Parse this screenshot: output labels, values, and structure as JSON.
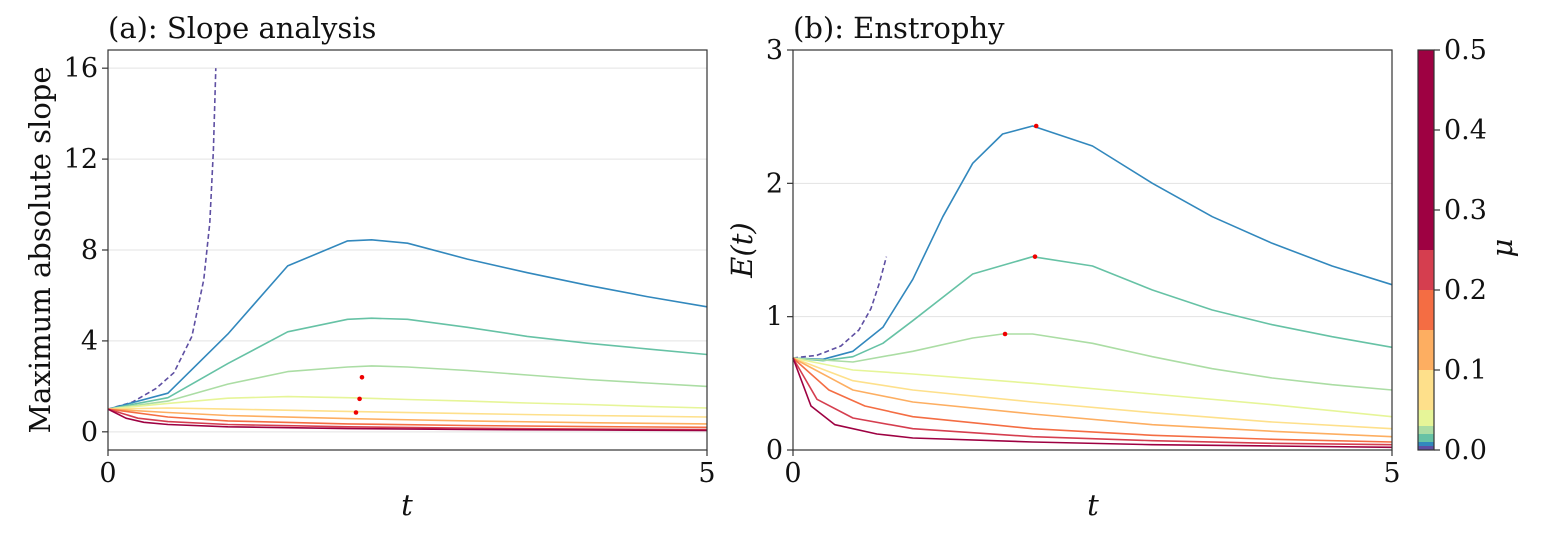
{
  "chart_data": [
    {
      "type": "line",
      "title": "(a): Slope analysis",
      "xlabel": "t",
      "ylabel": "Maximum absolute slope",
      "xlim": [
        0,
        5
      ],
      "ylim": [
        -0.8,
        16.8
      ],
      "xticks": [
        "0",
        "5"
      ],
      "yticks": [
        "0",
        "4",
        "8",
        "12",
        "16"
      ],
      "yticks_values": [
        0,
        4,
        8,
        12,
        16
      ],
      "xticks_values": [
        0,
        5
      ],
      "grid": "horizontal",
      "series": [
        {
          "color": "#5e4fa2",
          "style": "dashed",
          "x": [
            0,
            0.2,
            0.4,
            0.55,
            0.7,
            0.8,
            0.85,
            0.88,
            0.9
          ],
          "y": [
            1.0,
            1.3,
            1.9,
            2.6,
            4.2,
            6.7,
            9.2,
            12.4,
            16.0
          ]
        },
        {
          "color": "#3288bd",
          "x": [
            0,
            0.5,
            1.0,
            1.5,
            2.0,
            2.2,
            2.5,
            3.0,
            3.5,
            4.0,
            4.5,
            5.0
          ],
          "y": [
            1.0,
            1.7,
            4.3,
            7.3,
            8.4,
            8.45,
            8.3,
            7.6,
            7.0,
            6.45,
            5.95,
            5.5
          ]
        },
        {
          "color": "#66c2a5",
          "x": [
            0,
            0.5,
            1.0,
            1.5,
            2.0,
            2.2,
            2.5,
            3.0,
            3.5,
            4.0,
            4.5,
            5.0
          ],
          "y": [
            1.0,
            1.5,
            3.0,
            4.4,
            4.95,
            5.0,
            4.95,
            4.6,
            4.2,
            3.9,
            3.65,
            3.4
          ]
        },
        {
          "color": "#abdda4",
          "x": [
            0,
            0.5,
            1.0,
            1.5,
            2.0,
            2.2,
            2.5,
            3.0,
            3.5,
            4.0,
            4.5,
            5.0
          ],
          "y": [
            1.0,
            1.35,
            2.1,
            2.65,
            2.85,
            2.9,
            2.85,
            2.7,
            2.5,
            2.3,
            2.15,
            2.0
          ]
        },
        {
          "color": "#e6f598",
          "x": [
            0,
            0.5,
            1.0,
            1.5,
            2.0,
            2.5,
            3.0,
            3.5,
            4.0,
            4.5,
            5.0
          ],
          "y": [
            1.0,
            1.25,
            1.48,
            1.55,
            1.5,
            1.42,
            1.35,
            1.27,
            1.2,
            1.12,
            1.05
          ]
        },
        {
          "color": "#fee08b",
          "x": [
            0,
            0.5,
            1.0,
            2.0,
            3.0,
            4.0,
            5.0
          ],
          "y": [
            1.0,
            1.05,
            1.0,
            0.9,
            0.8,
            0.72,
            0.65
          ]
        },
        {
          "color": "#fdae61",
          "x": [
            0,
            0.5,
            1.0,
            2.0,
            3.0,
            4.0,
            5.0
          ],
          "y": [
            1.0,
            0.85,
            0.72,
            0.58,
            0.48,
            0.4,
            0.35
          ]
        },
        {
          "color": "#f46d43",
          "x": [
            0,
            0.5,
            1.0,
            2.0,
            3.0,
            4.0,
            5.0
          ],
          "y": [
            1.0,
            0.65,
            0.48,
            0.35,
            0.28,
            0.23,
            0.2
          ]
        },
        {
          "color": "#d53e4f",
          "x": [
            0,
            0.25,
            0.5,
            1.0,
            2.0,
            3.0,
            4.0,
            5.0
          ],
          "y": [
            1.0,
            0.6,
            0.45,
            0.32,
            0.22,
            0.16,
            0.12,
            0.1
          ]
        },
        {
          "color": "#9e0142",
          "x": [
            0,
            0.15,
            0.3,
            0.5,
            1.0,
            2.0,
            3.0,
            4.0,
            5.0
          ],
          "y": [
            1.0,
            0.6,
            0.42,
            0.32,
            0.22,
            0.14,
            0.1,
            0.08,
            0.06
          ]
        }
      ],
      "markers": {
        "color": "#ee0000",
        "x": [
          2.12,
          2.1,
          2.07
        ],
        "y": [
          2.4,
          1.45,
          0.85
        ]
      }
    },
    {
      "type": "line",
      "title": "(b): Enstrophy",
      "xlabel": "t",
      "ylabel": "E(t)",
      "xlim": [
        0,
        5
      ],
      "ylim": [
        0,
        3
      ],
      "xticks": [
        "0",
        "5"
      ],
      "yticks": [
        "0",
        "1",
        "2",
        "3"
      ],
      "yticks_values": [
        0,
        1,
        2,
        3
      ],
      "xticks_values": [
        0,
        5
      ],
      "grid": "horizontal",
      "series": [
        {
          "color": "#5e4fa2",
          "style": "dashed",
          "x": [
            0,
            0.2,
            0.4,
            0.55,
            0.65,
            0.72,
            0.78
          ],
          "y": [
            0.69,
            0.71,
            0.78,
            0.9,
            1.06,
            1.25,
            1.45
          ]
        },
        {
          "color": "#3288bd",
          "x": [
            0,
            0.25,
            0.5,
            0.75,
            1.0,
            1.25,
            1.5,
            1.75,
            2.0,
            2.5,
            3.0,
            3.5,
            4.0,
            4.5,
            5.0
          ],
          "y": [
            0.69,
            0.68,
            0.74,
            0.92,
            1.28,
            1.75,
            2.15,
            2.37,
            2.43,
            2.28,
            2.0,
            1.75,
            1.55,
            1.38,
            1.24
          ]
        },
        {
          "color": "#66c2a5",
          "x": [
            0,
            0.25,
            0.5,
            0.75,
            1.0,
            1.5,
            2.0,
            2.5,
            3.0,
            3.5,
            4.0,
            4.5,
            5.0
          ],
          "y": [
            0.69,
            0.67,
            0.7,
            0.8,
            0.97,
            1.32,
            1.45,
            1.38,
            1.2,
            1.05,
            0.94,
            0.85,
            0.77
          ]
        },
        {
          "color": "#abdda4",
          "x": [
            0,
            0.5,
            1.0,
            1.5,
            1.75,
            2.0,
            2.5,
            3.0,
            3.5,
            4.0,
            4.5,
            5.0
          ],
          "y": [
            0.69,
            0.66,
            0.74,
            0.84,
            0.87,
            0.87,
            0.8,
            0.7,
            0.61,
            0.54,
            0.49,
            0.45
          ]
        },
        {
          "color": "#e6f598",
          "x": [
            0,
            0.5,
            1.0,
            2.0,
            3.0,
            4.0,
            5.0
          ],
          "y": [
            0.69,
            0.6,
            0.57,
            0.5,
            0.42,
            0.34,
            0.25
          ]
        },
        {
          "color": "#fee08b",
          "x": [
            0,
            0.5,
            1.0,
            2.0,
            3.0,
            4.0,
            5.0
          ],
          "y": [
            0.69,
            0.52,
            0.45,
            0.36,
            0.28,
            0.21,
            0.16
          ]
        },
        {
          "color": "#fdae61",
          "x": [
            0,
            0.5,
            1.0,
            2.0,
            3.0,
            4.0,
            5.0
          ],
          "y": [
            0.69,
            0.45,
            0.36,
            0.27,
            0.19,
            0.14,
            0.1
          ]
        },
        {
          "color": "#f46d43",
          "x": [
            0,
            0.3,
            0.6,
            1.0,
            2.0,
            3.0,
            4.0,
            5.0
          ],
          "y": [
            0.69,
            0.45,
            0.33,
            0.25,
            0.16,
            0.11,
            0.08,
            0.06
          ]
        },
        {
          "color": "#d53e4f",
          "x": [
            0,
            0.2,
            0.5,
            1.0,
            2.0,
            3.0,
            4.0,
            5.0
          ],
          "y": [
            0.69,
            0.38,
            0.24,
            0.16,
            0.1,
            0.07,
            0.05,
            0.04
          ]
        },
        {
          "color": "#9e0142",
          "x": [
            0,
            0.15,
            0.35,
            0.7,
            1.0,
            2.0,
            3.0,
            4.0,
            5.0
          ],
          "y": [
            0.69,
            0.33,
            0.19,
            0.12,
            0.09,
            0.06,
            0.04,
            0.03,
            0.02
          ]
        }
      ],
      "markers": {
        "color": "#ee0000",
        "x": [
          2.03,
          2.02,
          1.77
        ],
        "y": [
          2.43,
          1.45,
          0.87
        ]
      }
    }
  ],
  "colorbar": {
    "label": "μ",
    "ticks": [
      "0.0",
      "0.1",
      "0.2",
      "0.3",
      "0.4",
      "0.5"
    ],
    "tick_values": [
      0.0,
      0.1,
      0.2,
      0.3,
      0.4,
      0.5
    ],
    "range": [
      0.0,
      0.5
    ],
    "segments": [
      {
        "from": 0.0,
        "to": 0.005,
        "color": "#5e4fa2"
      },
      {
        "from": 0.005,
        "to": 0.01,
        "color": "#3288bd"
      },
      {
        "from": 0.01,
        "to": 0.02,
        "color": "#66c2a5"
      },
      {
        "from": 0.02,
        "to": 0.03,
        "color": "#abdda4"
      },
      {
        "from": 0.03,
        "to": 0.05,
        "color": "#e6f598"
      },
      {
        "from": 0.05,
        "to": 0.1,
        "color": "#fee08b"
      },
      {
        "from": 0.1,
        "to": 0.15,
        "color": "#fdae61"
      },
      {
        "from": 0.15,
        "to": 0.2,
        "color": "#f46d43"
      },
      {
        "from": 0.2,
        "to": 0.25,
        "color": "#d53e4f"
      },
      {
        "from": 0.25,
        "to": 0.5,
        "color": "#9e0142"
      }
    ]
  }
}
